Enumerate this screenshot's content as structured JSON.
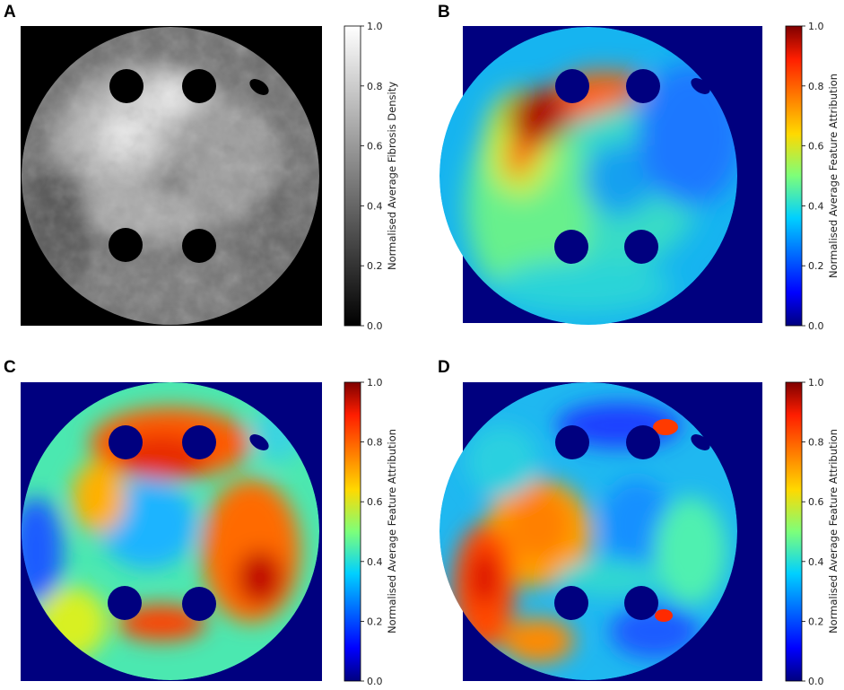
{
  "panels": [
    {
      "letter": "A",
      "kind": "density",
      "colormap": "gray",
      "colorbar_label": "Normalised Average Fibrosis Density",
      "colorbar_ticks": [
        "0.0",
        "0.2",
        "0.4",
        "0.6",
        "0.8",
        "1.0"
      ],
      "background_color": "#000000"
    },
    {
      "letter": "B",
      "kind": "attribution",
      "colormap": "jet",
      "colorbar_label": "Normalised Average Feature Attribution",
      "colorbar_ticks": [
        "0.0",
        "0.2",
        "0.4",
        "0.6",
        "0.8",
        "1.0"
      ],
      "background_color": "#00007f"
    },
    {
      "letter": "C",
      "kind": "attribution",
      "colormap": "jet",
      "colorbar_label": "Normalised Average Feature Attribution",
      "colorbar_ticks": [
        "0.0",
        "0.2",
        "0.4",
        "0.6",
        "0.8",
        "1.0"
      ],
      "background_color": "#00007f"
    },
    {
      "letter": "D",
      "kind": "attribution",
      "colormap": "jet",
      "colorbar_label": "Normalised Average Feature Attribution",
      "colorbar_ticks": [
        "0.0",
        "0.2",
        "0.4",
        "0.6",
        "0.8",
        "1.0"
      ],
      "background_color": "#00007f"
    }
  ]
}
